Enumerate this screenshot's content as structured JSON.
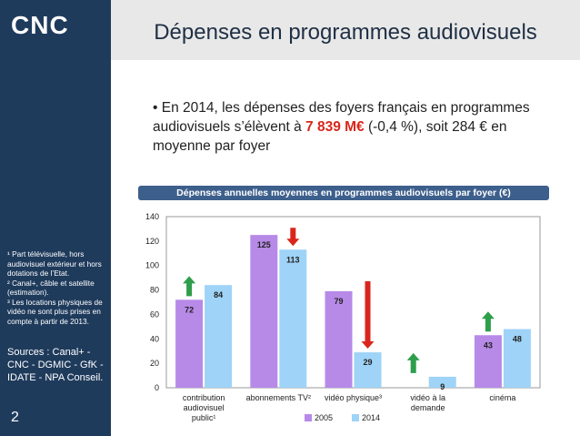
{
  "brand": {
    "logo_text": "CNC"
  },
  "slide": {
    "title": "Dépenses en programmes audiovisuels",
    "bullet_prefix": "• En 2014, les dépenses des foyers français en programmes audiovisuels s’élèvent à ",
    "bullet_highlight": "7 839 M€",
    "bullet_suffix": " (-0,4 %), soit 284 € en moyenne par foyer",
    "page_number": "2"
  },
  "sidebar": {
    "footnotes": [
      "¹ Part télévisuelle, hors audiovisuel extérieur et hors dotations de l’Etat.",
      "² Canal+, câble et satellite (estimation).",
      "³ Les locations physiques de vidéo ne sont plus prises en compte à partir de 2013."
    ],
    "sources": "Sources : Canal+ - CNC - DGMIC - GfK - IDATE - NPA Conseil."
  },
  "colors": {
    "navy": "#1f3b5c",
    "band": "#3d5f8c",
    "highlight": "#d9261c",
    "bar2005": "#b78ae8",
    "bar2014": "#9fd3f7",
    "up": "#2e9e4a",
    "down": "#d9261c"
  },
  "chart_data": {
    "type": "bar",
    "title": "Dépenses annuelles moyennes en programmes audiovisuels par foyer (€)",
    "categories": [
      "contribution audiovisuel public¹",
      "abonnements TV²",
      "vidéo physique³",
      "vidéo à la demande",
      "cinéma"
    ],
    "category_lines": [
      [
        "contribution",
        "audiovisuel",
        "public¹"
      ],
      [
        "abonnements TV²"
      ],
      [
        "vidéo physique³"
      ],
      [
        "vidéo à la",
        "demande"
      ],
      [
        "cinéma"
      ]
    ],
    "series": [
      {
        "name": "2005",
        "values": [
          72,
          125,
          79,
          null,
          43
        ]
      },
      {
        "name": "2014",
        "values": [
          84,
          113,
          29,
          9,
          48
        ]
      }
    ],
    "trend": [
      "up",
      "down",
      "down",
      "up",
      "up"
    ],
    "ylim": [
      0,
      140
    ],
    "yticks": [
      0,
      20,
      40,
      60,
      80,
      100,
      120,
      140
    ],
    "legend": "bottom",
    "xlabel": "",
    "ylabel": ""
  }
}
